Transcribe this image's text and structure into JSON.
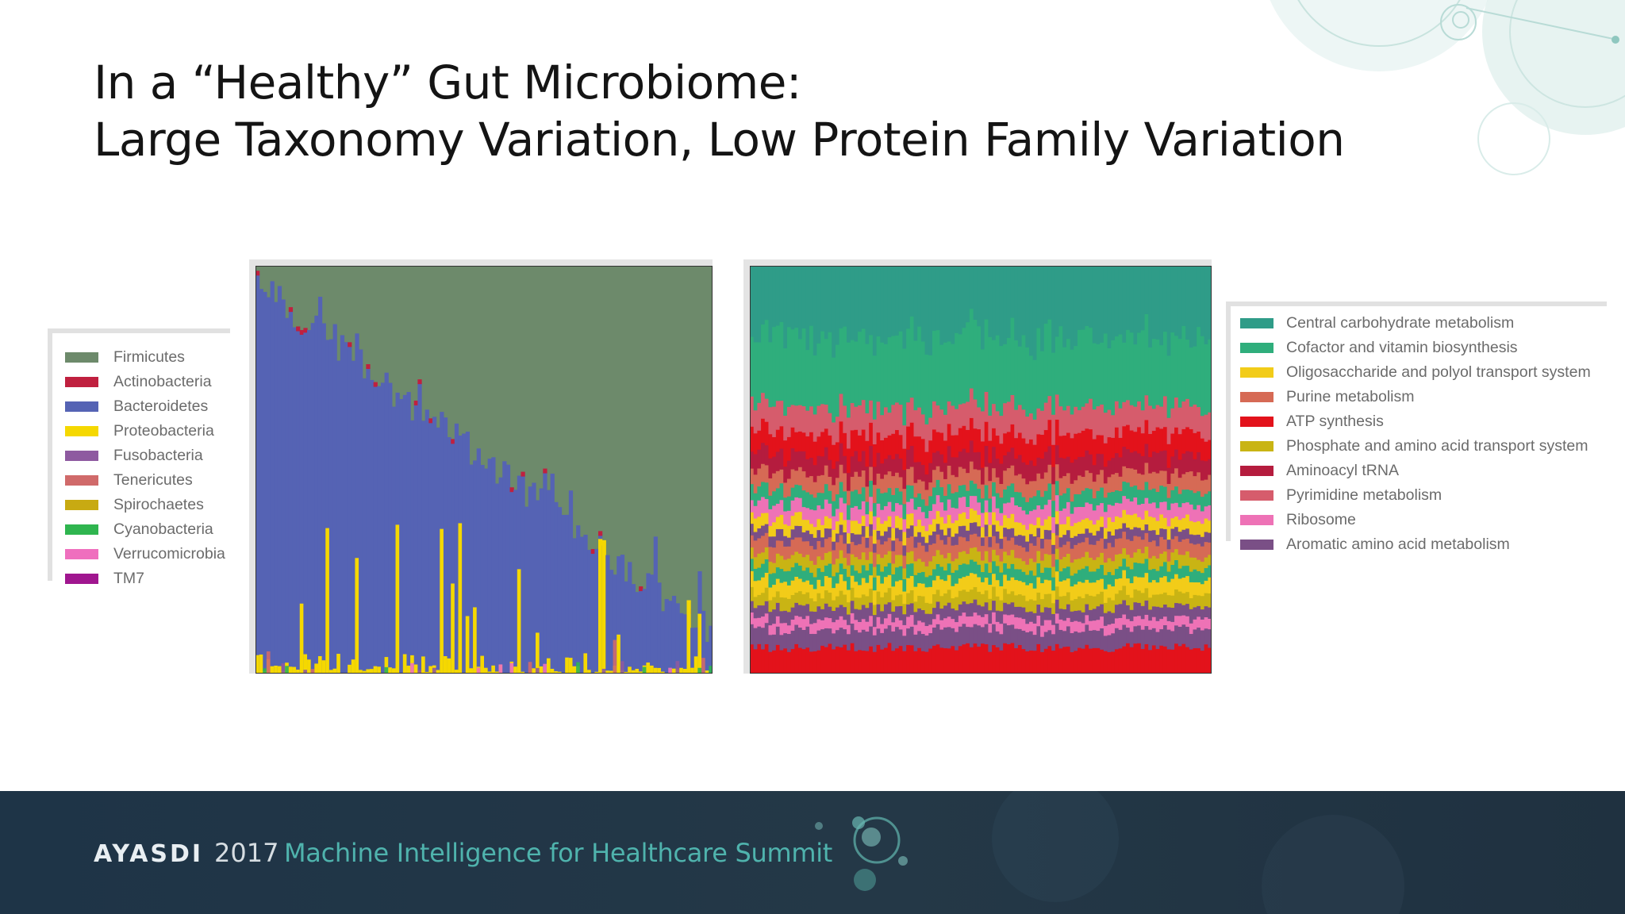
{
  "slide": {
    "title_line1": "In a “Healthy” Gut Microbiome:",
    "title_line2": "Large Taxonomy Variation, Low Protein Family Variation"
  },
  "footer": {
    "brand": "AYASDI",
    "year": "2017",
    "event": "Machine Intelligence for Healthcare Summit"
  },
  "colors": {
    "footer_bg": "#213545",
    "accent_teal": "#4fb3ad"
  },
  "legend_taxa": [
    {
      "label": "Firmicutes",
      "color": "#6d8a6b"
    },
    {
      "label": "Actinobacteria",
      "color": "#c0203f"
    },
    {
      "label": "Bacteroidetes",
      "color": "#5563b4"
    },
    {
      "label": "Proteobacteria",
      "color": "#f5d800"
    },
    {
      "label": "Fusobacteria",
      "color": "#8e5aa0"
    },
    {
      "label": "Tenericutes",
      "color": "#d06a6a"
    },
    {
      "label": "Spirochaetes",
      "color": "#c8aa12"
    },
    {
      "label": "Cyanobacteria",
      "color": "#2fb54f"
    },
    {
      "label": "Verrucomicrobia",
      "color": "#ef6fbe"
    },
    {
      "label": "TM7",
      "color": "#a0168f"
    }
  ],
  "legend_functions": [
    {
      "label": "Central carbohydrate metabolism",
      "color": "#2f9c88"
    },
    {
      "label": "Cofactor and vitamin biosynthesis",
      "color": "#2fae7c"
    },
    {
      "label": "Oligosaccharide and polyol transport system",
      "color": "#f2cc19"
    },
    {
      "label": "Purine metabolism",
      "color": "#d66a55"
    },
    {
      "label": "ATP synthesis",
      "color": "#e3121b"
    },
    {
      "label": "Phosphate and amino acid transport system",
      "color": "#c9b414"
    },
    {
      "label": "Aminoacyl tRNA",
      "color": "#b51c3e"
    },
    {
      "label": "Pyrimidine metabolism",
      "color": "#d65c6c"
    },
    {
      "label": "Ribosome",
      "color": "#ee72b6"
    },
    {
      "label": "Aromatic amino acid metabolism",
      "color": "#7a4f86"
    }
  ],
  "chart_data": [
    {
      "type": "area",
      "subject": "taxonomic composition per sample",
      "samples": 124,
      "ylim": [
        0,
        1
      ],
      "series": [
        "Firmicutes",
        "Actinobacteria",
        "Bacteroidetes",
        "Proteobacteria",
        "Fusobacteria",
        "Tenericutes",
        "Spirochaetes",
        "Cyanobacteria",
        "Verrucomicrobia",
        "TM7"
      ],
      "bacteroidetes_range": [
        0.1,
        0.95
      ],
      "trend": "Bacteroidetes share decreases left to right, Firmicutes fills the rest; sporadic Proteobacteria spikes at bottom"
    },
    {
      "type": "area",
      "subject": "protein-family functional composition per sample",
      "samples": 124,
      "ylim": [
        0,
        1
      ],
      "series": [
        "Central carbohydrate metabolism",
        "Cofactor and vitamin biosynthesis",
        "Oligosaccharide and polyol transport system",
        "Purine metabolism",
        "ATP synthesis",
        "Phosphate and amino acid transport system",
        "Aminoacyl tRNA",
        "Pyrimidine metabolism",
        "Ribosome",
        "Aromatic amino acid metabolism"
      ],
      "trend": "stable band proportions across samples"
    }
  ]
}
